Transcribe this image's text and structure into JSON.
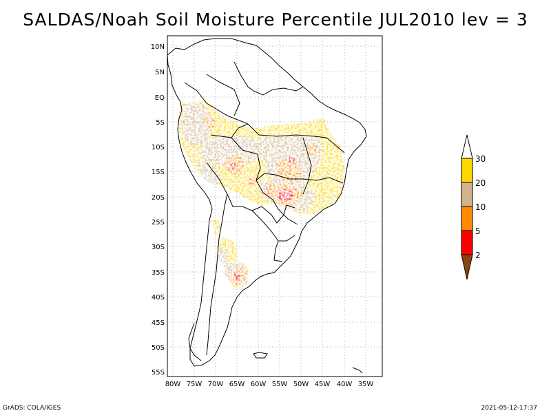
{
  "title": "SALDAS/Noah Soil Moisture Percentile JUL2010 lev = 3",
  "lat_labels": [
    "10N",
    "5N",
    "EQ",
    "5S",
    "10S",
    "15S",
    "20S",
    "25S",
    "30S",
    "35S",
    "40S",
    "45S",
    "50S",
    "55S"
  ],
  "lon_labels": [
    "80W",
    "75W",
    "70W",
    "65W",
    "60W",
    "55W",
    "50W",
    "45W",
    "40W",
    "35W"
  ],
  "colorbar": {
    "labels": [
      "30",
      "20",
      "10",
      "5",
      "2"
    ],
    "colors": {
      "over": "#ffffff",
      "c30": "#ffd700",
      "c20": "#d2b48c",
      "c10": "#ff8c00",
      "c5": "#ff0000",
      "under": "#8b4513"
    }
  },
  "footer": {
    "left": "GrADS: COLA/IGES",
    "right": "2021-05-12-17:37"
  }
}
